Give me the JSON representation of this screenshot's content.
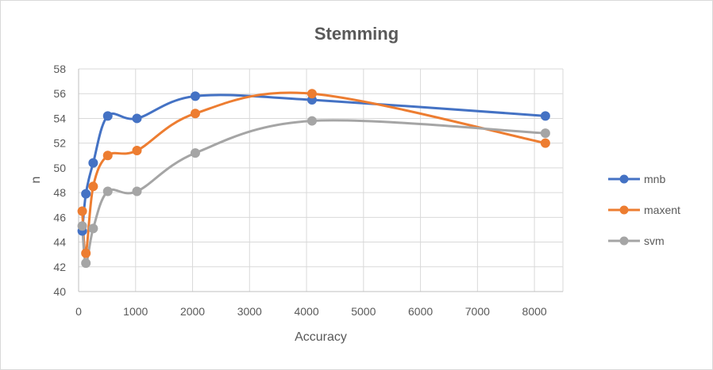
{
  "chart_data": {
    "type": "line",
    "title": "Stemming",
    "xlabel": "Accuracy",
    "ylabel": "n",
    "xlim": [
      0,
      8500
    ],
    "ylim": [
      40,
      58
    ],
    "x_ticks": [
      "0",
      "1000",
      "2000",
      "3000",
      "4000",
      "5000",
      "6000",
      "7000",
      "8000"
    ],
    "y_ticks": [
      "40",
      "42",
      "44",
      "46",
      "48",
      "50",
      "52",
      "54",
      "56",
      "58"
    ],
    "grid": "vertical and horizontal",
    "legend_position": "right",
    "x": [
      64,
      128,
      256,
      512,
      1024,
      2048,
      4096,
      8192
    ],
    "series": [
      {
        "name": "mnb",
        "color": "#4472C4",
        "values": [
          44.9,
          47.9,
          50.4,
          54.2,
          54.0,
          55.8,
          55.5,
          54.2
        ]
      },
      {
        "name": "maxent",
        "color": "#ED7D31",
        "values": [
          46.5,
          43.1,
          48.5,
          51.0,
          51.4,
          54.4,
          56.0,
          52.0
        ]
      },
      {
        "name": "svm",
        "color": "#A5A5A5",
        "values": [
          45.3,
          42.3,
          45.1,
          48.1,
          48.1,
          51.2,
          53.8,
          52.8
        ]
      }
    ]
  }
}
